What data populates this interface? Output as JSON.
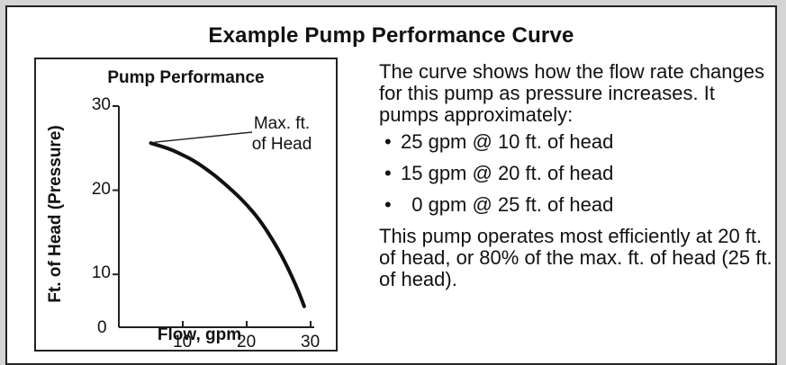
{
  "title": "Example Pump Performance Curve",
  "chart_data": {
    "type": "line",
    "title": "Pump Performance",
    "xlabel": "Flow, gpm",
    "ylabel": "Ft. of Head (Pressure)",
    "xlim": [
      0,
      30
    ],
    "ylim": [
      5,
      30
    ],
    "x_ticks": [
      "10",
      "20",
      "30"
    ],
    "y_ticks": [
      "10",
      "20",
      "30"
    ],
    "origin_label": "0",
    "grid": false,
    "series": [
      {
        "x": [
          5,
          8,
          10,
          12,
          15,
          18,
          20,
          22,
          24,
          26,
          28,
          29
        ],
        "y": [
          25.6,
          24.9,
          24.2,
          23.4,
          21.8,
          19.8,
          18.3,
          16.5,
          14.2,
          11.5,
          8.2,
          6.2
        ],
        "color": "#111111"
      }
    ],
    "annotation": {
      "line1": "Max. ft.",
      "line2": "of Head",
      "point": [
        5,
        25.6
      ]
    }
  },
  "description": {
    "intro": "The curve shows how the flow rate changes for this pump as pressure increases. It pumps approximately:",
    "bullets": [
      {
        "marker": "•",
        "text": "25 gpm @ 10 ft. of head"
      },
      {
        "marker": "•",
        "text": "15 gpm @ 20 ft. of head"
      },
      {
        "marker": "•",
        "text": "  0 gpm @ 25 ft. of head"
      }
    ],
    "conclusion": "This pump operates most efficiently at 20 ft. of head, or 80% of the max. ft. of head (25 ft. of head)."
  }
}
